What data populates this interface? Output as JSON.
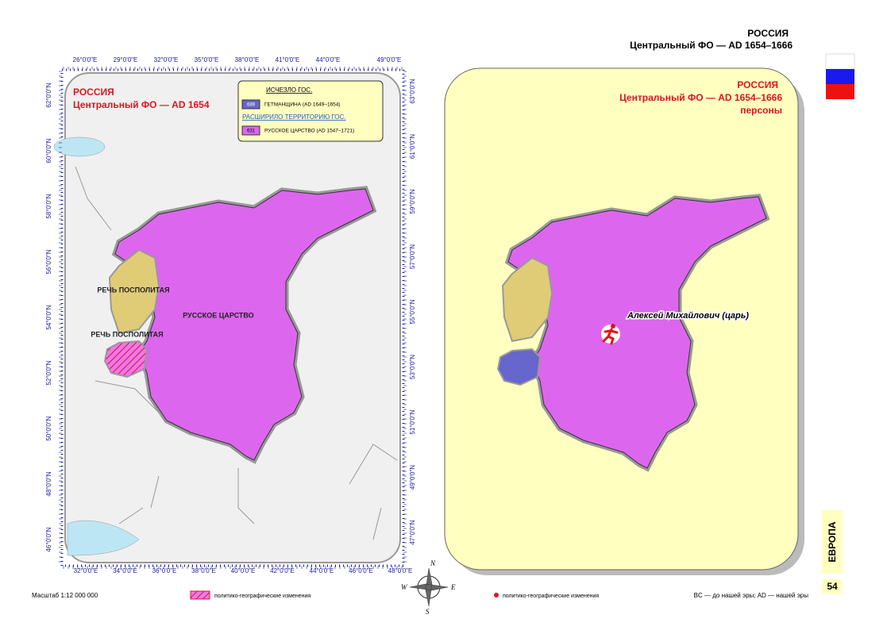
{
  "header": {
    "title": "РОССИЯ",
    "subtitle": "Центральный ФО — AD 1654–1666"
  },
  "left_map": {
    "title": "РОССИЯ",
    "subtitle": "Центральный ФО — AD 1654",
    "top_axis": [
      "26°0'0\"E",
      "29°0'0\"E",
      "32°0'0\"E",
      "35°0'0\"E",
      "38°0'0\"E",
      "41°0'0\"E",
      "44°0'0\"E",
      "49°0'0\"E"
    ],
    "bottom_axis": [
      "32°0'0\"E",
      "34°0'0\"E",
      "36°0'0\"E",
      "38°0'0\"E",
      "40°0'0\"E",
      "42°0'0\"E",
      "44°0'0\"E",
      "46°0'0\"E",
      "48°0'0\"E"
    ],
    "left_axis": [
      "62°0'0\"N",
      "60°0'0\"N",
      "58°0'0\"N",
      "56°0'0\"N",
      "54°0'0\"N",
      "52°0'0\"N",
      "50°0'0\"N",
      "48°0'0\"N",
      "46°0'0\"N"
    ],
    "right_axis": [
      "63°0'0\"N",
      "61°0'0\"N",
      "59°0'0\"N",
      "57°0'0\"N",
      "55°0'0\"N",
      "53°0'0\"N",
      "51°0'0\"N",
      "49°0'0\"N",
      "47°0'0\"N"
    ],
    "legend": {
      "removed_heading": "ИСЧЕЗЛО ГОС.",
      "removed_code": "689",
      "removed_label": "ГЕТМАНЩИНА (AD 1649–1654)",
      "expanded_heading": "РАСШИРИЛО ТЕРРИТОРИЮ ГОС.",
      "expanded_code": "631",
      "expanded_label": "РУССКОЕ ЦАРСТВО (AD 1547–1721)"
    },
    "labels": [
      "РЕЧЬ ПОСПОЛИТАЯ",
      "РЕЧЬ ПОСПОЛИТАЯ",
      "РУССКОЕ ЦАРСТВО"
    ]
  },
  "right_map": {
    "title": "РОССИЯ",
    "subtitle": "Центральный ФО — AD 1654–1666",
    "note": "персоны",
    "person": "Алексей Михайлович (царь)"
  },
  "compass": [
    "N",
    "W",
    "E",
    "S"
  ],
  "footer": {
    "scale": "Масштаб 1:12 000 000",
    "hatch_legend": "политико-географические изменения",
    "dot_legend": "политико-географические изменения",
    "era_note": "BC — до нашей эры; AD — нашей эры",
    "section": "ЕВРОПА",
    "page": "54"
  }
}
